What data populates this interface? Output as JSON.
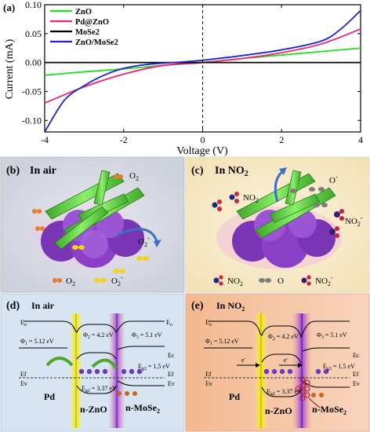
{
  "chart_data": {
    "type": "line",
    "panel_label": "(a)",
    "xlabel": "Voltage (V)",
    "ylabel": "Current (mA)",
    "xlim": [
      -4,
      4
    ],
    "ylim": [
      -0.12,
      0.1
    ],
    "xticks": [
      -4,
      -2,
      0,
      2,
      4
    ],
    "yticks": [
      0.1,
      0.05,
      0.0,
      -0.05,
      -0.1
    ],
    "ytick_labels": [
      "0.10",
      "0.05",
      "0.00",
      "-0.05",
      "-0.10"
    ],
    "legend_position": "top-left",
    "series": [
      {
        "name": "ZnO",
        "color": "#22dd22",
        "x": [
          -4,
          -3,
          -2,
          -1,
          0,
          1,
          2,
          3,
          4
        ],
        "y": [
          -0.022,
          -0.016,
          -0.011,
          -0.005,
          0.0,
          0.007,
          0.013,
          0.019,
          0.025
        ]
      },
      {
        "name": "Pd@ZnO",
        "color": "#ee2277",
        "x": [
          -4,
          -3,
          -2,
          -1,
          0,
          1,
          2,
          3,
          4
        ],
        "y": [
          -0.07,
          -0.042,
          -0.02,
          -0.005,
          0.0,
          0.007,
          0.017,
          0.032,
          0.058
        ]
      },
      {
        "name": "MoSe2",
        "color": "#000000",
        "x": [
          -4,
          -2,
          0,
          2,
          4
        ],
        "y": [
          0.0,
          0.0,
          0.0,
          0.0,
          0.0
        ]
      },
      {
        "name": "ZnO/MoSe2",
        "color": "#2222cc",
        "x": [
          -4,
          -3.5,
          -3,
          -2.5,
          -2,
          -1.5,
          -1,
          -0.5,
          0,
          1,
          2,
          3,
          3.5,
          4
        ],
        "y": [
          -0.12,
          -0.065,
          -0.04,
          -0.022,
          -0.01,
          -0.004,
          -0.001,
          0.001,
          0.004,
          0.012,
          0.022,
          0.037,
          0.058,
          0.09
        ]
      }
    ]
  },
  "panels": {
    "b": {
      "label": "(b)",
      "title": "In air",
      "o2_top": "O",
      "o2_top_sub": "2",
      "o2_minus": "O",
      "o2_minus_sub": "2",
      "o2_minus_sup": "-",
      "legend_o2": "O",
      "legend_o2_sub": "2",
      "legend_o2m": "O",
      "legend_o2m_sub": "2",
      "legend_o2m_sup": "-"
    },
    "c": {
      "label": "(c)",
      "title": "In NO",
      "title_sub": "2",
      "no2_a": "NO",
      "no2_a_sub": "2",
      "o_minus": "O",
      "o_minus_sup": "-",
      "no2m": "NO",
      "no2m_sub": "2",
      "no2m_sup": "-",
      "legend_no2": "NO",
      "legend_no2_sub": "2",
      "legend_o": "O",
      "legend_no2m": "NO",
      "legend_no2m_sub": "2",
      "legend_no2m_sup": "-"
    },
    "d": {
      "label": "(d)",
      "title": "In air",
      "eo_left": "E",
      "eo_left_sub": "o",
      "eo_right": "E",
      "eo_right_sub": "o",
      "phi1": "Φ",
      "phi1_sub": "1",
      "phi1_val": " = 5.12 eV",
      "phi2": "Φ",
      "phi2_sub": "2",
      "phi2_val": " = 4.2 eV",
      "phi3": "Φ",
      "phi3_sub": "3",
      "phi3_val": " = 5.1 eV",
      "eg_mo": "E",
      "eg_mo_sub": "g3",
      "eg_mo_val": " = 1.5 eV",
      "eg_zn": "E",
      "eg_zn_sub": "g2",
      "eg_zn_val": " = 3.37 eV",
      "ef_left": "Ef",
      "ev_left": "Ev",
      "ef_right": "Ef",
      "ev_right": "Ev",
      "ec_right": "Ec",
      "pd": "Pd",
      "zno": "n-ZnO",
      "mose2": "n-MoSe",
      "mose2_sub": "2"
    },
    "e": {
      "label": "(e)",
      "title": "In NO",
      "title_sub": "2",
      "eo_left": "E",
      "eo_left_sub": "o",
      "phi1": "Φ",
      "phi1_sub": "1",
      "phi1_val": " = 5.12 eV",
      "phi2": "Φ",
      "phi2_sub": "2",
      "phi2_val": " = 4.2 eV",
      "phi3": "Φ",
      "phi3_sub": "3",
      "phi3_val": " = 5.1 eV",
      "eg_mo": "E",
      "eg_mo_sub": "g3",
      "eg_mo_val": " = 1.5 eV",
      "eg_zn": "E",
      "eg_zn_sub": "g2",
      "eg_zn_val": " = 3.37 eV",
      "ef_left": "Ef",
      "ev_left": "Ev",
      "ef_right": "Ef",
      "ev_right": "Ev",
      "ec_right": "Ec",
      "pd": "Pd",
      "zno": "n-ZnO",
      "mose2": "n-MoSe",
      "mose2_sub": "2",
      "e1": "e",
      "e1_sup": "-",
      "e2": "e",
      "e2_sup": "-"
    }
  },
  "colors": {
    "panel_b_bg": "#d7dbe3",
    "panel_c_bg": "#f7e9c6",
    "panel_d_bg": "#d6e4f3",
    "panel_e_bg": "#f5c8a8",
    "nanoflower": "#8a3fc2",
    "nanorod": "#66e04a"
  }
}
